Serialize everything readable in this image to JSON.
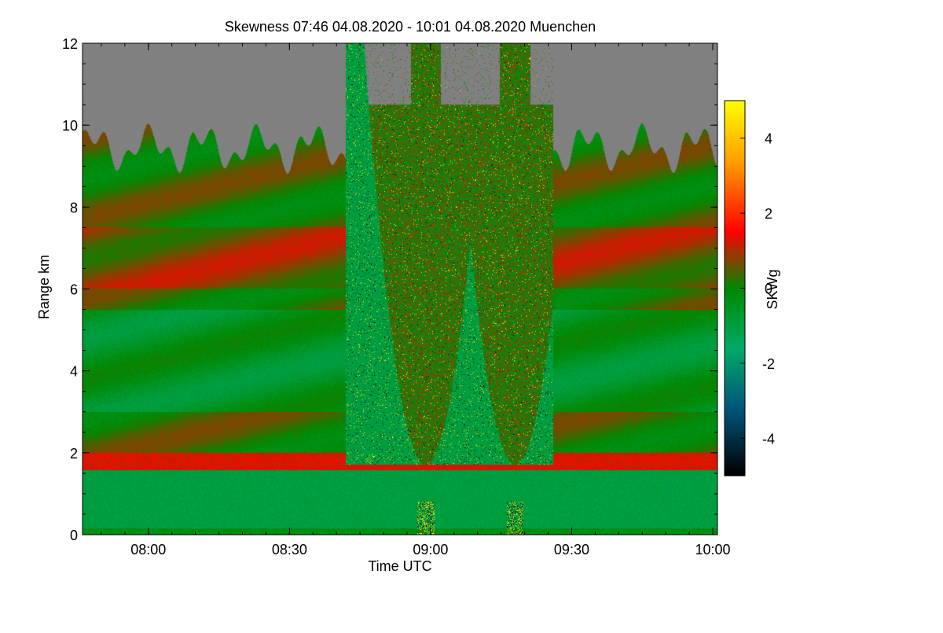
{
  "chart_data": {
    "type": "heatmap",
    "title": "Skewness   07:46 04.08.2020 - 10:01 04.08.2020 Muenchen",
    "xlabel": "Time UTC",
    "ylabel": "Range km",
    "x_range_minutes": [
      466,
      601
    ],
    "xlim_time": [
      "07:46",
      "10:01"
    ],
    "x_ticks": [
      {
        "label": "08:00",
        "minutes": 480
      },
      {
        "label": "08:30",
        "minutes": 510
      },
      {
        "label": "09:00",
        "minutes": 540
      },
      {
        "label": "09:30",
        "minutes": 570
      },
      {
        "label": "10:00",
        "minutes": 600
      }
    ],
    "x_minor_step_minutes": 5,
    "ylim": [
      0,
      12
    ],
    "y_ticks": [
      0,
      2,
      4,
      6,
      8,
      10,
      12
    ],
    "y_minor_step": 0.5,
    "colorbar": {
      "label": "SKWg",
      "range": [
        -5,
        5
      ],
      "ticks": [
        4,
        2,
        0,
        -2,
        -4
      ],
      "colors": [
        {
          "value": 5,
          "color": "#ffff00"
        },
        {
          "value": 3.3,
          "color": "#ff9900"
        },
        {
          "value": 1.5,
          "color": "#ff0000"
        },
        {
          "value": 0,
          "color": "#008800"
        },
        {
          "value": -1.6,
          "color": "#00aa66"
        },
        {
          "value": -3.2,
          "color": "#00557a"
        },
        {
          "value": -5,
          "color": "#000000"
        }
      ]
    },
    "features": {
      "no_data_color": "#808080",
      "cloud_top_km": 9.6,
      "boundary_layer_top_km": 1.7,
      "noisy_time_window": [
        "08:42",
        "09:26"
      ],
      "pass_1_center": "08:59",
      "pass_2_center": "09:18"
    }
  }
}
